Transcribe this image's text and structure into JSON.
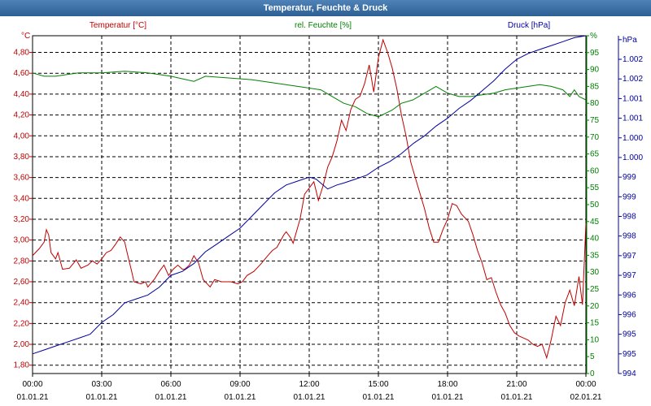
{
  "window": {
    "title": "Temperatur, Feuchte & Druck"
  },
  "chart_data": {
    "type": "line",
    "title": "Temperatur, Feuchte & Druck",
    "grid": true,
    "x": {
      "range": [
        "00:00",
        "24:00"
      ],
      "tick_labels": [
        {
          "time": "00:00",
          "date": "01.01.21"
        },
        {
          "time": "03:00",
          "date": "01.01.21"
        },
        {
          "time": "06:00",
          "date": "01.01.21"
        },
        {
          "time": "09:00",
          "date": "01.01.21"
        },
        {
          "time": "12:00",
          "date": "01.01.21"
        },
        {
          "time": "15:00",
          "date": "01.01.21"
        },
        {
          "time": "18:00",
          "date": "01.01.21"
        },
        {
          "time": "21:00",
          "date": "01.01.21"
        },
        {
          "time": "00:00",
          "date": "02.01.21"
        }
      ]
    },
    "axes": {
      "temperature": {
        "unit": "°C",
        "label": "Temperatur [°C]",
        "color": "#c00000",
        "side": "left",
        "ylim": [
          1.72,
          4.96
        ],
        "ticks": [
          "1,80",
          "2,00",
          "2,20",
          "2,40",
          "2,60",
          "2,80",
          "3,00",
          "3,20",
          "3,40",
          "3,60",
          "3,80",
          "4,00",
          "4,20",
          "4,40",
          "4,60",
          "4,80"
        ],
        "tick_values": [
          1.8,
          2.0,
          2.2,
          2.4,
          2.6,
          2.8,
          3.0,
          3.2,
          3.4,
          3.6,
          3.8,
          4.0,
          4.2,
          4.4,
          4.6,
          4.8
        ]
      },
      "humidity": {
        "unit": "%",
        "label": "rel. Feuchte [%]",
        "color": "#008000",
        "side": "right-inner",
        "ylim": [
          0,
          100
        ],
        "ticks": [
          "0",
          "5",
          "10",
          "15",
          "20",
          "25",
          "30",
          "35",
          "40",
          "45",
          "50",
          "55",
          "60",
          "65",
          "70",
          "75",
          "80",
          "85",
          "90",
          "95",
          "%"
        ],
        "tick_values": [
          0,
          5,
          10,
          15,
          20,
          25,
          30,
          35,
          40,
          45,
          50,
          55,
          60,
          65,
          70,
          75,
          80,
          85,
          90,
          95,
          100
        ]
      },
      "pressure": {
        "unit": "hPa",
        "label": "Druck [hPa]",
        "color": "#0000a0",
        "side": "right-outer",
        "ylim": [
          994,
          1002.6
        ],
        "ticks": [
          "994",
          "995",
          "995",
          "996",
          "996",
          "997",
          "997",
          "998",
          "998",
          "999",
          "999",
          "1.000",
          "1.000",
          "1.001",
          "1.001",
          "1.002",
          "1.002",
          "hPa"
        ],
        "tick_values": [
          994,
          994.5,
          995,
          995.5,
          996,
          996.5,
          997,
          997.5,
          998,
          998.5,
          999,
          999.5,
          1000,
          1000.5,
          1001,
          1001.5,
          1002,
          1002.5
        ]
      }
    },
    "series": [
      {
        "name": "Temperatur [°C]",
        "axis": "temperature",
        "color": "#c00000",
        "points": [
          [
            0,
            2.85
          ],
          [
            0.3,
            2.92
          ],
          [
            0.5,
            2.98
          ],
          [
            0.6,
            3.1
          ],
          [
            0.7,
            3.05
          ],
          [
            0.8,
            2.88
          ],
          [
            1.0,
            2.82
          ],
          [
            1.1,
            2.88
          ],
          [
            1.2,
            2.8
          ],
          [
            1.3,
            2.72
          ],
          [
            1.6,
            2.73
          ],
          [
            1.9,
            2.81
          ],
          [
            2.1,
            2.73
          ],
          [
            2.4,
            2.76
          ],
          [
            2.6,
            2.8
          ],
          [
            2.8,
            2.77
          ],
          [
            3.0,
            2.82
          ],
          [
            3.2,
            2.88
          ],
          [
            3.4,
            2.9
          ],
          [
            3.6,
            2.96
          ],
          [
            3.8,
            3.03
          ],
          [
            4.0,
            2.98
          ],
          [
            4.1,
            2.88
          ],
          [
            4.3,
            2.7
          ],
          [
            4.4,
            2.6
          ],
          [
            4.7,
            2.58
          ],
          [
            4.9,
            2.6
          ],
          [
            5.0,
            2.55
          ],
          [
            5.3,
            2.63
          ],
          [
            5.5,
            2.7
          ],
          [
            5.7,
            2.76
          ],
          [
            5.9,
            2.66
          ],
          [
            6.1,
            2.72
          ],
          [
            6.3,
            2.76
          ],
          [
            6.5,
            2.72
          ],
          [
            6.6,
            2.72
          ],
          [
            6.8,
            2.76
          ],
          [
            7.0,
            2.85
          ],
          [
            7.2,
            2.78
          ],
          [
            7.4,
            2.62
          ],
          [
            7.7,
            2.55
          ],
          [
            7.9,
            2.62
          ],
          [
            8.2,
            2.6
          ],
          [
            8.6,
            2.6
          ],
          [
            8.9,
            2.58
          ],
          [
            9.1,
            2.6
          ],
          [
            9.3,
            2.66
          ],
          [
            9.6,
            2.7
          ],
          [
            9.9,
            2.77
          ],
          [
            10.2,
            2.85
          ],
          [
            10.4,
            2.9
          ],
          [
            10.6,
            2.93
          ],
          [
            10.9,
            3.05
          ],
          [
            11.0,
            3.08
          ],
          [
            11.2,
            3.02
          ],
          [
            11.3,
            2.97
          ],
          [
            11.6,
            3.2
          ],
          [
            11.8,
            3.44
          ],
          [
            12.0,
            3.5
          ],
          [
            12.2,
            3.56
          ],
          [
            12.4,
            3.38
          ],
          [
            12.6,
            3.52
          ],
          [
            12.8,
            3.7
          ],
          [
            13.0,
            3.8
          ],
          [
            13.2,
            3.95
          ],
          [
            13.4,
            4.15
          ],
          [
            13.6,
            4.05
          ],
          [
            13.8,
            4.25
          ],
          [
            14.0,
            4.35
          ],
          [
            14.2,
            4.38
          ],
          [
            14.4,
            4.5
          ],
          [
            14.6,
            4.68
          ],
          [
            14.8,
            4.42
          ],
          [
            15.0,
            4.75
          ],
          [
            15.2,
            4.92
          ],
          [
            15.4,
            4.8
          ],
          [
            15.6,
            4.65
          ],
          [
            15.8,
            4.45
          ],
          [
            16.0,
            4.2
          ],
          [
            16.2,
            4.0
          ],
          [
            16.4,
            3.75
          ],
          [
            16.6,
            3.6
          ],
          [
            16.8,
            3.45
          ],
          [
            17.0,
            3.3
          ],
          [
            17.2,
            3.12
          ],
          [
            17.4,
            2.98
          ],
          [
            17.6,
            2.98
          ],
          [
            17.8,
            3.1
          ],
          [
            18.0,
            3.2
          ],
          [
            18.2,
            3.35
          ],
          [
            18.4,
            3.33
          ],
          [
            18.6,
            3.25
          ],
          [
            18.9,
            3.18
          ],
          [
            19.1,
            3.05
          ],
          [
            19.3,
            2.9
          ],
          [
            19.5,
            2.78
          ],
          [
            19.7,
            2.62
          ],
          [
            19.9,
            2.64
          ],
          [
            20.1,
            2.5
          ],
          [
            20.3,
            2.38
          ],
          [
            20.5,
            2.3
          ],
          [
            20.7,
            2.18
          ],
          [
            20.9,
            2.11
          ],
          [
            21.1,
            2.08
          ],
          [
            21.3,
            2.06
          ],
          [
            21.5,
            2.04
          ],
          [
            21.7,
            2.0
          ],
          [
            21.9,
            1.98
          ],
          [
            22.1,
            2.0
          ],
          [
            22.3,
            1.87
          ],
          [
            22.5,
            2.05
          ],
          [
            22.7,
            2.27
          ],
          [
            22.9,
            2.18
          ],
          [
            23.1,
            2.4
          ],
          [
            23.3,
            2.52
          ],
          [
            23.5,
            2.37
          ],
          [
            23.7,
            2.65
          ],
          [
            23.85,
            2.38
          ],
          [
            24.0,
            3.16
          ]
        ]
      },
      {
        "name": "rel. Feuchte [%]",
        "axis": "humidity",
        "color": "#008000",
        "points": [
          [
            0,
            89
          ],
          [
            0.5,
            88
          ],
          [
            1.0,
            88
          ],
          [
            1.5,
            88.5
          ],
          [
            2.0,
            89
          ],
          [
            3.0,
            89
          ],
          [
            4.0,
            89.5
          ],
          [
            5.0,
            89
          ],
          [
            6.0,
            88
          ],
          [
            7.0,
            86.5
          ],
          [
            7.5,
            88
          ],
          [
            8.5,
            87.5
          ],
          [
            9.5,
            87
          ],
          [
            10.5,
            86
          ],
          [
            11.5,
            85
          ],
          [
            12.5,
            84
          ],
          [
            13.0,
            82
          ],
          [
            13.5,
            80
          ],
          [
            14.0,
            79
          ],
          [
            14.5,
            77
          ],
          [
            15.0,
            76
          ],
          [
            15.3,
            77
          ],
          [
            15.6,
            78
          ],
          [
            16.0,
            80
          ],
          [
            16.5,
            81
          ],
          [
            17.0,
            83
          ],
          [
            17.5,
            85
          ],
          [
            18.0,
            83
          ],
          [
            18.5,
            82
          ],
          [
            19.0,
            82
          ],
          [
            19.5,
            82.5
          ],
          [
            20.0,
            83
          ],
          [
            20.5,
            84
          ],
          [
            21.0,
            84.5
          ],
          [
            21.5,
            85
          ],
          [
            22.0,
            85.5
          ],
          [
            22.5,
            85
          ],
          [
            23.0,
            84
          ],
          [
            23.3,
            82
          ],
          [
            23.5,
            84
          ],
          [
            23.7,
            82
          ],
          [
            24.0,
            81
          ]
        ]
      },
      {
        "name": "Druck [hPa]",
        "axis": "pressure",
        "color": "#0000a0",
        "points": [
          [
            0,
            994.5
          ],
          [
            0.5,
            994.6
          ],
          [
            1.0,
            994.7
          ],
          [
            1.5,
            994.8
          ],
          [
            2.0,
            994.9
          ],
          [
            2.5,
            995.0
          ],
          [
            3.0,
            995.3
          ],
          [
            3.5,
            995.5
          ],
          [
            4.0,
            995.8
          ],
          [
            4.5,
            995.9
          ],
          [
            5.0,
            996.0
          ],
          [
            5.5,
            996.2
          ],
          [
            6.0,
            996.5
          ],
          [
            6.5,
            996.6
          ],
          [
            7.0,
            996.8
          ],
          [
            7.5,
            997.1
          ],
          [
            8.0,
            997.3
          ],
          [
            8.5,
            997.5
          ],
          [
            9.0,
            997.7
          ],
          [
            9.5,
            998.0
          ],
          [
            10.0,
            998.3
          ],
          [
            10.5,
            998.6
          ],
          [
            11.0,
            998.8
          ],
          [
            11.5,
            998.9
          ],
          [
            12.0,
            999.0
          ],
          [
            12.3,
            998.95
          ],
          [
            12.8,
            998.7
          ],
          [
            13.2,
            998.8
          ],
          [
            13.5,
            998.85
          ],
          [
            14.0,
            998.95
          ],
          [
            14.5,
            999.05
          ],
          [
            15.0,
            999.25
          ],
          [
            15.5,
            999.4
          ],
          [
            16.0,
            999.6
          ],
          [
            16.5,
            999.85
          ],
          [
            17.0,
            1000.05
          ],
          [
            17.5,
            1000.3
          ],
          [
            18.0,
            1000.5
          ],
          [
            18.5,
            1000.75
          ],
          [
            19.0,
            1000.95
          ],
          [
            19.5,
            1001.2
          ],
          [
            20.0,
            1001.45
          ],
          [
            20.5,
            1001.75
          ],
          [
            21.0,
            1002.0
          ],
          [
            21.5,
            1002.15
          ],
          [
            22.0,
            1002.25
          ],
          [
            22.5,
            1002.35
          ],
          [
            23.0,
            1002.45
          ],
          [
            23.5,
            1002.55
          ],
          [
            24.0,
            1002.6
          ]
        ]
      }
    ]
  }
}
